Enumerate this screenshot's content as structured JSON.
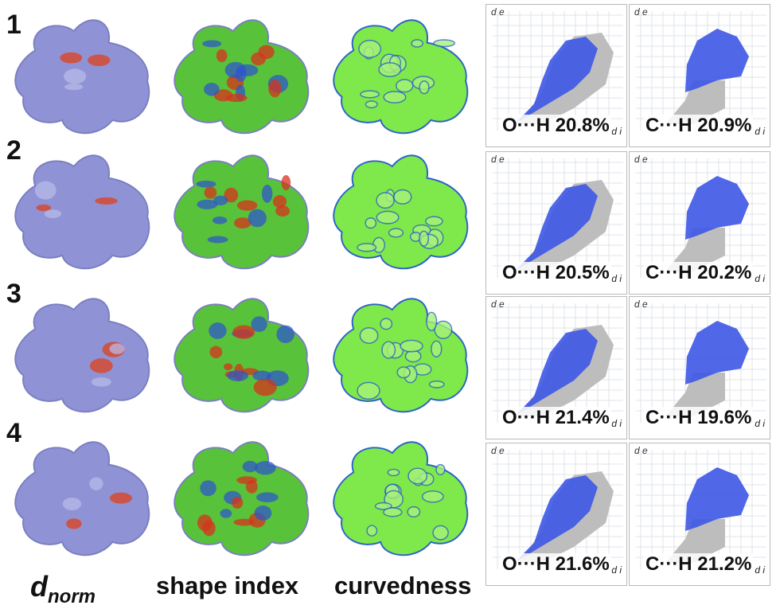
{
  "rows": [
    {
      "number": "1",
      "fp": [
        {
          "label": "O···H 20.8%"
        },
        {
          "label": "C···H 20.9%"
        }
      ]
    },
    {
      "number": "2",
      "fp": [
        {
          "label": "O···H 20.5%"
        },
        {
          "label": "C···H 20.2%"
        }
      ]
    },
    {
      "number": "3",
      "fp": [
        {
          "label": "O···H 21.4%"
        },
        {
          "label": "C···H 19.6%"
        }
      ]
    },
    {
      "number": "4",
      "fp": [
        {
          "label": "O···H 21.6%"
        },
        {
          "label": "C···H 21.2%"
        }
      ]
    }
  ],
  "axis_symbols": {
    "de": "d e",
    "di": "d i"
  },
  "columns": {
    "dnorm_base": "d",
    "dnorm_sub": "norm",
    "shape_index": "shape index",
    "curvedness": "curvedness"
  },
  "colors": {
    "dnorm_surface": "#8f93d6",
    "dnorm_hot": "#e0401a",
    "shape_base": "#58c23a",
    "shape_red": "#d8321c",
    "shape_blue": "#2f57c8",
    "curv_base": "#7fe84a",
    "curv_edge": "#2c63c7",
    "fp_points": "#3d56e6",
    "fp_grey": "#bdbdbd"
  }
}
